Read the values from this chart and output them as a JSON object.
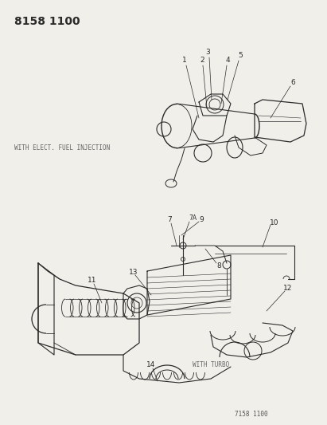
{
  "bg_color": "#f0efea",
  "line_color": "#2a2a2a",
  "title": "8158 1100",
  "title_fontsize": 10,
  "title_fontweight": "bold",
  "footer_text": "7158 1100",
  "footer_fontsize": 5.5,
  "label_efi": "WITH ELECT. FUEL INJECTION",
  "label_efi_fontsize": 5.5,
  "label_turbo": "WITH TURBO",
  "label_turbo_fontsize": 5.5,
  "callout_fontsize": 6.0,
  "number_fontsize": 6.5
}
